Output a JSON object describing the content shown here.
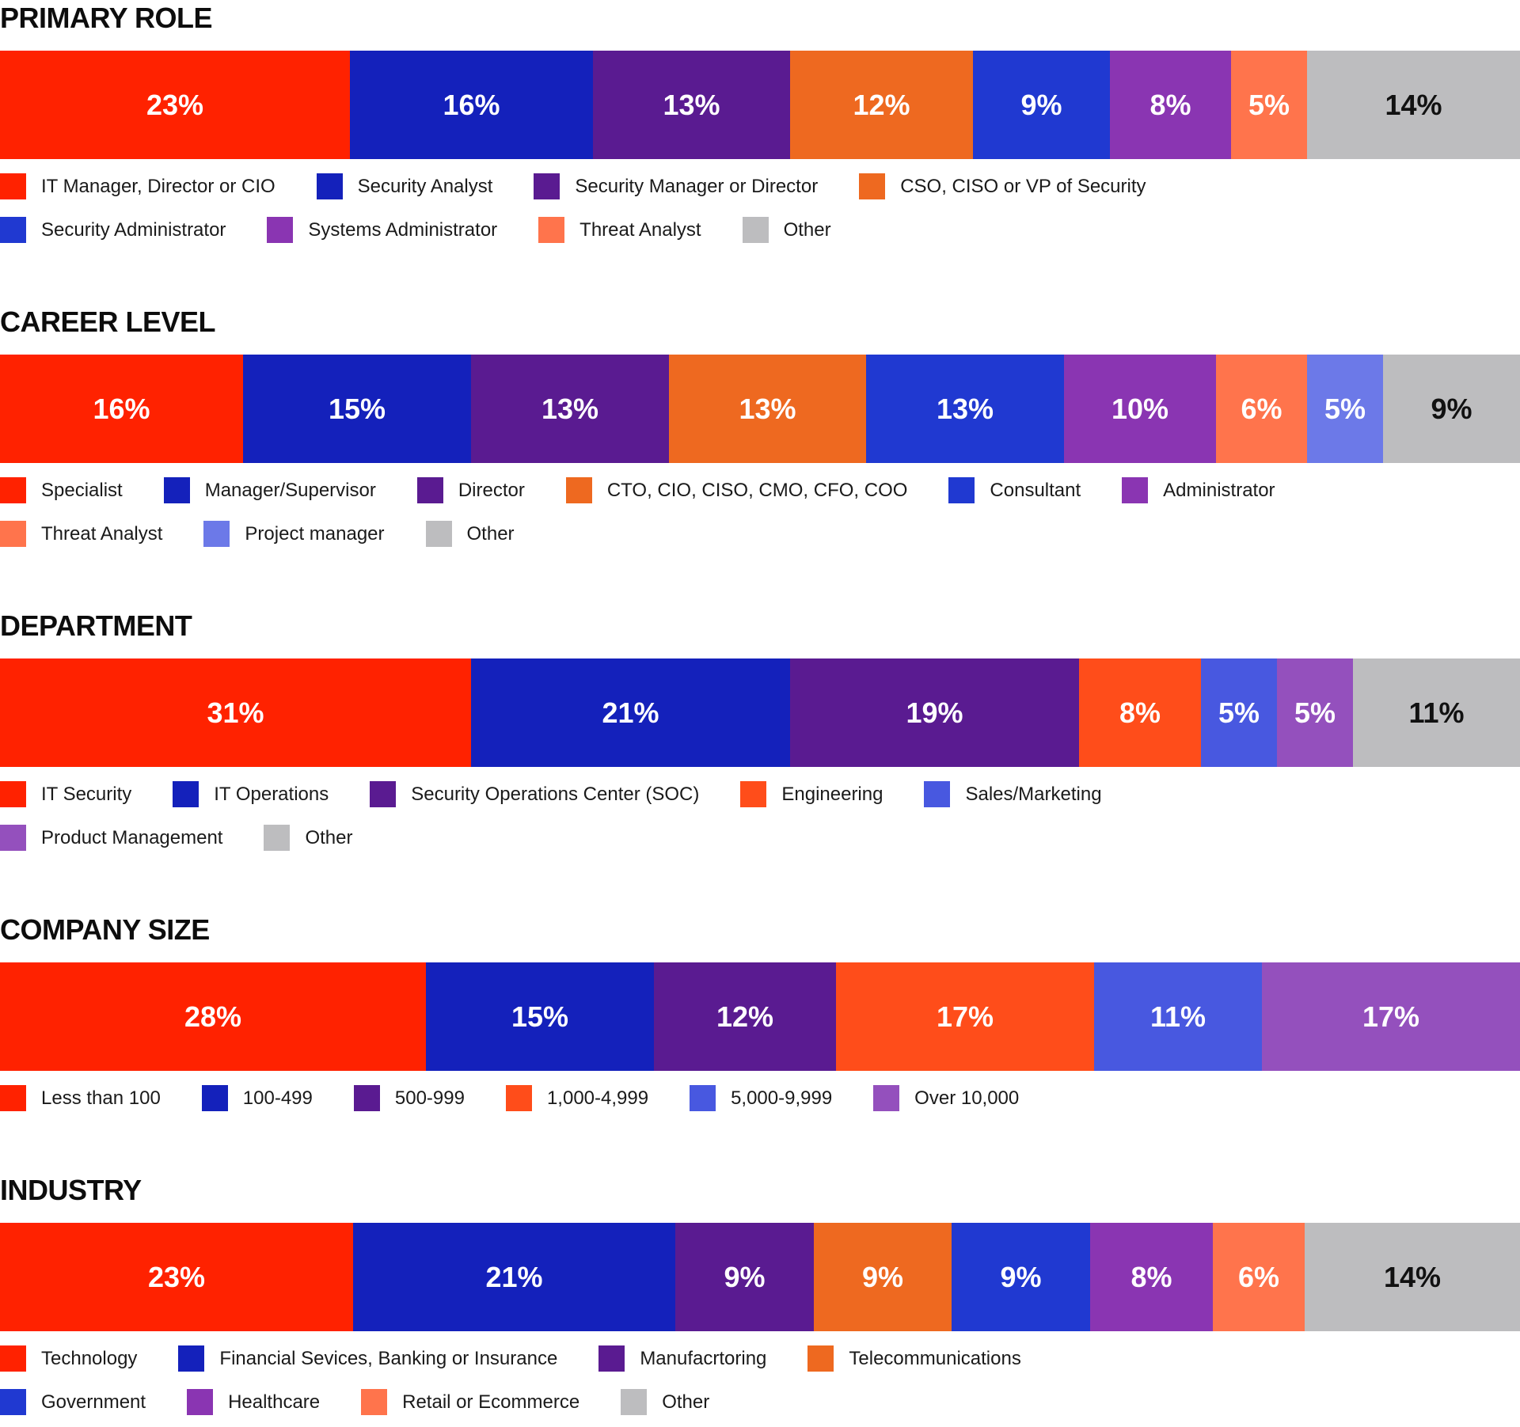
{
  "chart_data": [
    {
      "type": "bar",
      "orientation": "horizontal-stacked-100",
      "title": "PRIMARY ROLE",
      "legend_position": "bottom",
      "legend_rows": [
        4,
        4
      ],
      "series": [
        {
          "name": "IT Manager, Director or CIO",
          "value": 23,
          "label": "23%",
          "color": "#ff2200",
          "text": "light"
        },
        {
          "name": "Security Analyst",
          "value": 16,
          "label": "16%",
          "color": "#1421bb",
          "text": "light"
        },
        {
          "name": "Security Manager or Director",
          "value": 13,
          "label": "13%",
          "color": "#5a1b91",
          "text": "light"
        },
        {
          "name": "CSO, CISO or VP of Security",
          "value": 12,
          "label": "12%",
          "color": "#ee6920",
          "text": "light"
        },
        {
          "name": "Security Administrator",
          "value": 9,
          "label": "9%",
          "color": "#2039d1",
          "text": "light"
        },
        {
          "name": "Systems Administrator",
          "value": 8,
          "label": "8%",
          "color": "#8a35b2",
          "text": "light"
        },
        {
          "name": "Threat Analyst",
          "value": 5,
          "label": "5%",
          "color": "#ff744c",
          "text": "light"
        },
        {
          "name": "Other",
          "value": 14,
          "label": "14%",
          "color": "#bdbdbf",
          "text": "dark"
        }
      ]
    },
    {
      "type": "bar",
      "orientation": "horizontal-stacked-100",
      "title": "CAREER LEVEL",
      "legend_position": "bottom",
      "legend_rows": [
        6,
        3
      ],
      "series": [
        {
          "name": "Specialist",
          "value": 16,
          "label": "16%",
          "color": "#ff2200",
          "text": "light"
        },
        {
          "name": "Manager/Supervisor",
          "value": 15,
          "label": "15%",
          "color": "#1421bb",
          "text": "light"
        },
        {
          "name": "Director",
          "value": 13,
          "label": "13%",
          "color": "#5a1b91",
          "text": "light"
        },
        {
          "name": "CTO, CIO, CISO, CMO, CFO, COO",
          "value": 13,
          "label": "13%",
          "color": "#ee6920",
          "text": "light"
        },
        {
          "name": "Consultant",
          "value": 13,
          "label": "13%",
          "color": "#2039d1",
          "text": "light"
        },
        {
          "name": "Administrator",
          "value": 10,
          "label": "10%",
          "color": "#8a35b2",
          "text": "light"
        },
        {
          "name": "Threat Analyst",
          "value": 6,
          "label": "6%",
          "color": "#ff744c",
          "text": "light"
        },
        {
          "name": "Project manager",
          "value": 5,
          "label": "5%",
          "color": "#6c79e8",
          "text": "light"
        },
        {
          "name": "Other",
          "value": 9,
          "label": "9%",
          "color": "#bdbdbf",
          "text": "dark"
        }
      ]
    },
    {
      "type": "bar",
      "orientation": "horizontal-stacked-100",
      "title": "DEPARTMENT",
      "legend_position": "bottom",
      "legend_rows": [
        5,
        2
      ],
      "series": [
        {
          "name": "IT Security",
          "value": 31,
          "label": "31%",
          "color": "#ff2200",
          "text": "light"
        },
        {
          "name": "IT Operations",
          "value": 21,
          "label": "21%",
          "color": "#1421bb",
          "text": "light"
        },
        {
          "name": "Security Operations Center (SOC)",
          "value": 19,
          "label": "19%",
          "color": "#5a1b91",
          "text": "light"
        },
        {
          "name": "Engineering",
          "value": 8,
          "label": "8%",
          "color": "#ff4d1a",
          "text": "light"
        },
        {
          "name": "Sales/Marketing",
          "value": 5,
          "label": "5%",
          "color": "#4858e0",
          "text": "light"
        },
        {
          "name": "Product Management",
          "value": 5,
          "label": "5%",
          "color": "#9450bd",
          "text": "light"
        },
        {
          "name": "Other",
          "value": 11,
          "label": "11%",
          "color": "#bdbdbf",
          "text": "dark"
        }
      ]
    },
    {
      "type": "bar",
      "orientation": "horizontal-stacked-100",
      "title": "COMPANY SIZE",
      "legend_position": "bottom",
      "legend_rows": [
        6
      ],
      "series": [
        {
          "name": "Less than 100",
          "value": 28,
          "label": "28%",
          "color": "#ff2200",
          "text": "light"
        },
        {
          "name": "100-499",
          "value": 15,
          "label": "15%",
          "color": "#1421bb",
          "text": "light"
        },
        {
          "name": "500-999",
          "value": 12,
          "label": "12%",
          "color": "#5a1b91",
          "text": "light"
        },
        {
          "name": "1,000-4,999",
          "value": 17,
          "label": "17%",
          "color": "#ff4d1a",
          "text": "light"
        },
        {
          "name": "5,000-9,999",
          "value": 11,
          "label": "11%",
          "color": "#4858e0",
          "text": "light"
        },
        {
          "name": "Over 10,000",
          "value": 17,
          "label": "17%",
          "color": "#9450bd",
          "text": "light"
        }
      ]
    },
    {
      "type": "bar",
      "orientation": "horizontal-stacked-100",
      "title": "INDUSTRY",
      "legend_position": "bottom",
      "legend_rows": [
        4,
        4
      ],
      "series": [
        {
          "name": "Technology",
          "value": 23,
          "label": "23%",
          "color": "#ff2200",
          "text": "light"
        },
        {
          "name": "Financial Sevices, Banking or Insurance",
          "value": 21,
          "label": "21%",
          "color": "#1421bb",
          "text": "light"
        },
        {
          "name": "Manufacrtoring",
          "value": 9,
          "label": "9%",
          "color": "#5a1b91",
          "text": "light"
        },
        {
          "name": "Telecommunications",
          "value": 9,
          "label": "9%",
          "color": "#ee6920",
          "text": "light"
        },
        {
          "name": "Government",
          "value": 9,
          "label": "9%",
          "color": "#2039d1",
          "text": "light"
        },
        {
          "name": "Healthcare",
          "value": 8,
          "label": "8%",
          "color": "#8a35b2",
          "text": "light"
        },
        {
          "name": "Retail or Ecommerce",
          "value": 6,
          "label": "6%",
          "color": "#ff744c",
          "text": "light"
        },
        {
          "name": "Other",
          "value": 14,
          "label": "14%",
          "color": "#bdbdbf",
          "text": "dark"
        }
      ]
    }
  ]
}
